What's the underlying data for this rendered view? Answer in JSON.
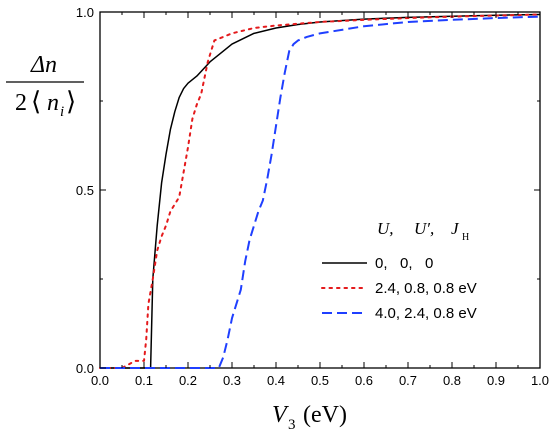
{
  "chart_data": {
    "type": "line",
    "title": "",
    "xlabel": {
      "var": "V",
      "sub": "3",
      "unit": "(eV)"
    },
    "ylabel": {
      "num": "Δn",
      "den_prefix": "2",
      "den_var": "n",
      "den_sub": "i"
    },
    "xlim": [
      0.0,
      1.0
    ],
    "ylim": [
      0.0,
      1.0
    ],
    "x_ticks": [
      "0.0",
      "0.1",
      "0.2",
      "0.3",
      "0.4",
      "0.5",
      "0.6",
      "0.7",
      "0.8",
      "0.9",
      "1.0"
    ],
    "y_ticks": [
      "0.0",
      "0.5",
      "1.0"
    ],
    "grid": false,
    "legend_position": "right",
    "legend_header": {
      "u": "U,",
      "up": "U′,",
      "j": "J",
      "j_sub": "H"
    },
    "series": [
      {
        "name": "0,   0,   0",
        "color": "#000000",
        "dash": "solid",
        "points": [
          [
            0.0,
            0.0
          ],
          [
            0.11,
            0.0
          ],
          [
            0.115,
            0.0
          ],
          [
            0.118,
            0.15
          ],
          [
            0.12,
            0.25
          ],
          [
            0.13,
            0.4
          ],
          [
            0.14,
            0.52
          ],
          [
            0.15,
            0.6
          ],
          [
            0.16,
            0.67
          ],
          [
            0.17,
            0.72
          ],
          [
            0.18,
            0.76
          ],
          [
            0.19,
            0.785
          ],
          [
            0.2,
            0.8
          ],
          [
            0.22,
            0.82
          ],
          [
            0.25,
            0.86
          ],
          [
            0.28,
            0.89
          ],
          [
            0.3,
            0.91
          ],
          [
            0.35,
            0.94
          ],
          [
            0.4,
            0.955
          ],
          [
            0.45,
            0.965
          ],
          [
            0.5,
            0.972
          ],
          [
            0.6,
            0.98
          ],
          [
            0.7,
            0.985
          ],
          [
            0.8,
            0.988
          ],
          [
            0.9,
            0.991
          ],
          [
            1.0,
            0.993
          ]
        ]
      },
      {
        "name": "2.4, 0.8, 0.8 eV",
        "color": "#e41a1c",
        "dash": "dot",
        "points": [
          [
            0.0,
            0.0
          ],
          [
            0.05,
            0.0
          ],
          [
            0.08,
            0.02
          ],
          [
            0.1,
            0.02
          ],
          [
            0.105,
            0.08
          ],
          [
            0.11,
            0.18
          ],
          [
            0.12,
            0.25
          ],
          [
            0.13,
            0.33
          ],
          [
            0.14,
            0.37
          ],
          [
            0.15,
            0.4
          ],
          [
            0.16,
            0.44
          ],
          [
            0.17,
            0.46
          ],
          [
            0.18,
            0.48
          ],
          [
            0.19,
            0.55
          ],
          [
            0.2,
            0.62
          ],
          [
            0.21,
            0.7
          ],
          [
            0.22,
            0.74
          ],
          [
            0.23,
            0.77
          ],
          [
            0.235,
            0.8
          ],
          [
            0.24,
            0.83
          ],
          [
            0.245,
            0.86
          ],
          [
            0.25,
            0.88
          ],
          [
            0.255,
            0.9
          ],
          [
            0.26,
            0.92
          ],
          [
            0.28,
            0.93
          ],
          [
            0.3,
            0.94
          ],
          [
            0.35,
            0.955
          ],
          [
            0.4,
            0.962
          ],
          [
            0.5,
            0.972
          ],
          [
            0.6,
            0.978
          ],
          [
            0.7,
            0.983
          ],
          [
            0.8,
            0.987
          ],
          [
            0.9,
            0.99
          ],
          [
            1.0,
            0.993
          ]
        ]
      },
      {
        "name": "4.0, 2.4, 0.8 eV",
        "color": "#1f3fff",
        "dash": "dash",
        "points": [
          [
            0.0,
            0.0
          ],
          [
            0.27,
            0.0
          ],
          [
            0.28,
            0.03
          ],
          [
            0.29,
            0.08
          ],
          [
            0.3,
            0.14
          ],
          [
            0.31,
            0.18
          ],
          [
            0.32,
            0.22
          ],
          [
            0.33,
            0.3
          ],
          [
            0.34,
            0.36
          ],
          [
            0.35,
            0.4
          ],
          [
            0.36,
            0.44
          ],
          [
            0.37,
            0.47
          ],
          [
            0.38,
            0.53
          ],
          [
            0.39,
            0.6
          ],
          [
            0.4,
            0.68
          ],
          [
            0.41,
            0.76
          ],
          [
            0.42,
            0.83
          ],
          [
            0.43,
            0.89
          ],
          [
            0.44,
            0.91
          ],
          [
            0.45,
            0.92
          ],
          [
            0.47,
            0.93
          ],
          [
            0.5,
            0.94
          ],
          [
            0.6,
            0.96
          ],
          [
            0.7,
            0.972
          ],
          [
            0.8,
            0.978
          ],
          [
            0.9,
            0.983
          ],
          [
            1.0,
            0.987
          ]
        ]
      }
    ]
  }
}
